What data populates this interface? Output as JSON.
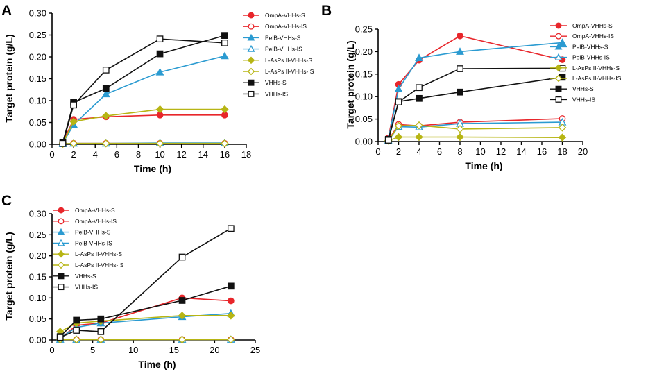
{
  "chart_data": [
    {
      "panel": "A",
      "type": "line",
      "xlabel": "Time (h)",
      "ylabel": "Target protein (g/L)",
      "xlim": [
        0,
        18
      ],
      "ylim": [
        0,
        0.3
      ],
      "xticks": [
        0,
        2,
        4,
        6,
        8,
        10,
        12,
        14,
        16,
        18
      ],
      "yticks": [
        0.0,
        0.05,
        0.1,
        0.15,
        0.2,
        0.25,
        0.3
      ],
      "x": [
        1,
        2,
        5,
        10,
        16
      ],
      "legend_position": "right",
      "series": [
        {
          "name": "OmpA-VHHs-S",
          "color": "#e8262b",
          "marker": "circle",
          "filled": true,
          "values": [
            0.005,
            0.057,
            0.063,
            0.067,
            0.067
          ]
        },
        {
          "name": "OmpA-VHHs-IS",
          "color": "#e8262b",
          "marker": "circle",
          "filled": false,
          "values": [
            0.001,
            0.002,
            0.002,
            0.002,
            0.002
          ]
        },
        {
          "name": "PelB-VHHs-S",
          "color": "#2b9bd1",
          "marker": "triangle",
          "filled": true,
          "values": [
            0.003,
            0.045,
            0.115,
            0.165,
            0.202
          ]
        },
        {
          "name": "PelB-VHHs-IS",
          "color": "#2b9bd1",
          "marker": "triangle",
          "filled": false,
          "values": [
            0.001,
            0.002,
            0.002,
            0.003,
            0.003
          ]
        },
        {
          "name": "L-AsPs II-VHHs-S",
          "color": "#b7b514",
          "marker": "diamond",
          "filled": true,
          "values": [
            0.003,
            0.052,
            0.065,
            0.08,
            0.08
          ]
        },
        {
          "name": "L-AsPs II-VHHs-IS",
          "color": "#b7b514",
          "marker": "diamond",
          "filled": false,
          "values": [
            0.001,
            0.002,
            0.002,
            0.002,
            0.002
          ]
        },
        {
          "name": "VHHs-S",
          "color": "#111111",
          "marker": "square",
          "filled": true,
          "values": [
            0.005,
            0.096,
            0.128,
            0.207,
            0.249
          ]
        },
        {
          "name": "VHHs-IS",
          "color": "#111111",
          "marker": "square",
          "filled": false,
          "values": [
            0.002,
            0.09,
            0.17,
            0.241,
            0.232
          ]
        }
      ]
    },
    {
      "panel": "B",
      "type": "line",
      "xlabel": "Time (h)",
      "ylabel": "Target protein (g/L)",
      "xlim": [
        0,
        20
      ],
      "ylim": [
        0,
        0.25
      ],
      "xticks": [
        0,
        2,
        4,
        6,
        8,
        10,
        12,
        14,
        16,
        18,
        20
      ],
      "yticks": [
        0.0,
        0.05,
        0.1,
        0.15,
        0.2,
        0.25
      ],
      "x": [
        1,
        2,
        4,
        8,
        18
      ],
      "legend_position": "right",
      "series": [
        {
          "name": "OmpA-VHHs-S",
          "color": "#e8262b",
          "marker": "circle",
          "filled": true,
          "values": [
            0.008,
            0.127,
            0.181,
            0.235,
            0.182
          ]
        },
        {
          "name": "OmpA-VHHs-IS",
          "color": "#e8262b",
          "marker": "circle",
          "filled": false,
          "values": [
            0.003,
            0.038,
            0.035,
            0.043,
            0.051
          ]
        },
        {
          "name": "PelB-VHHs-S",
          "color": "#2b9bd1",
          "marker": "triangle",
          "filled": true,
          "values": [
            0.005,
            0.117,
            0.186,
            0.2,
            0.22
          ]
        },
        {
          "name": "PelB-VHHs-IS",
          "color": "#2b9bd1",
          "marker": "triangle",
          "filled": false,
          "values": [
            0.002,
            0.033,
            0.032,
            0.04,
            0.043
          ]
        },
        {
          "name": "L-AsPs II-VHHs-S",
          "color": "#b7b514",
          "marker": "diamond",
          "filled": true,
          "values": [
            0.002,
            0.01,
            0.01,
            0.01,
            0.009
          ]
        },
        {
          "name": "L-AsPs II-VHHs-IS",
          "color": "#b7b514",
          "marker": "diamond",
          "filled": false,
          "values": [
            0.002,
            0.035,
            0.036,
            0.028,
            0.031
          ]
        },
        {
          "name": "VHHs-S",
          "color": "#111111",
          "marker": "square",
          "filled": true,
          "values": [
            0.005,
            0.089,
            0.096,
            0.11,
            0.143
          ]
        },
        {
          "name": "VHHs-IS",
          "color": "#111111",
          "marker": "square",
          "filled": false,
          "values": [
            0.003,
            0.088,
            0.12,
            0.162,
            0.163
          ]
        }
      ]
    },
    {
      "panel": "C",
      "type": "line",
      "xlabel": "Time (h)",
      "ylabel": "Target protein (g/L)",
      "xlim": [
        0,
        25
      ],
      "ylim": [
        0,
        0.3
      ],
      "xticks": [
        0,
        5,
        10,
        15,
        20,
        25
      ],
      "yticks": [
        0.0,
        0.05,
        0.1,
        0.15,
        0.2,
        0.25,
        0.3
      ],
      "x": [
        1,
        3,
        6,
        16,
        22
      ],
      "legend_position": "top-left",
      "series": [
        {
          "name": "OmpA-VHHs-S",
          "color": "#e8262b",
          "marker": "circle",
          "filled": true,
          "values": [
            0.003,
            0.035,
            0.04,
            0.1,
            0.093
          ]
        },
        {
          "name": "OmpA-VHHs-IS",
          "color": "#e8262b",
          "marker": "circle",
          "filled": false,
          "values": [
            0.001,
            0.001,
            0.001,
            0.001,
            0.001
          ]
        },
        {
          "name": "PelB-VHHs-S",
          "color": "#2b9bd1",
          "marker": "triangle",
          "filled": true,
          "values": [
            0.005,
            0.03,
            0.04,
            0.055,
            0.063
          ]
        },
        {
          "name": "PelB-VHHs-IS",
          "color": "#2b9bd1",
          "marker": "triangle",
          "filled": false,
          "values": [
            0.001,
            0.001,
            0.001,
            0.001,
            0.001
          ]
        },
        {
          "name": "L-AsPs II-VHHs-S",
          "color": "#b7b514",
          "marker": "diamond",
          "filled": true,
          "values": [
            0.02,
            0.04,
            0.045,
            0.058,
            0.058
          ]
        },
        {
          "name": "L-AsPs II-VHHs-IS",
          "color": "#b7b514",
          "marker": "diamond",
          "filled": false,
          "values": [
            0.001,
            0.001,
            0.001,
            0.001,
            0.001
          ]
        },
        {
          "name": "VHHs-S",
          "color": "#111111",
          "marker": "square",
          "filled": true,
          "values": [
            0.008,
            0.047,
            0.05,
            0.094,
            0.128
          ]
        },
        {
          "name": "VHHs-IS",
          "color": "#111111",
          "marker": "square",
          "filled": false,
          "values": [
            0.006,
            0.023,
            0.02,
            0.197,
            0.265
          ]
        }
      ]
    }
  ]
}
